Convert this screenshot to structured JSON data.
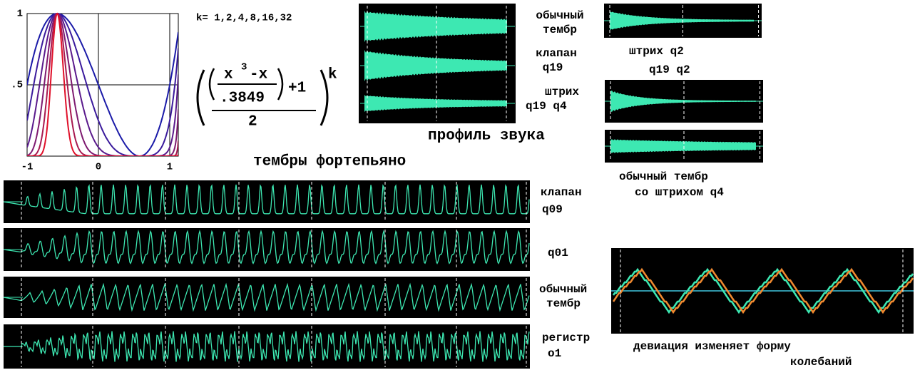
{
  "plot": {
    "xlim": [
      -1,
      1.12
    ],
    "ylim": [
      0,
      1
    ],
    "xticks": [
      -1,
      0,
      1
    ],
    "yticks": [
      {
        "value": 0.5,
        "label": ".5"
      },
      1
    ],
    "k_text": "k= 1,2,4,8,16,32",
    "curves": [
      {
        "k": 1,
        "color": "#1a1aa8"
      },
      {
        "k": 2,
        "color": "#3a1a9c"
      },
      {
        "k": 4,
        "color": "#5a1a8c"
      },
      {
        "k": 8,
        "color": "#7e1a70"
      },
      {
        "k": 16,
        "color": "#a81a50"
      },
      {
        "k": 32,
        "color": "#e0102a"
      }
    ]
  },
  "formula": {
    "numerator": "x",
    "exponent": "3",
    "minus": "-x",
    "divisor": ".3849",
    "plus": "+1",
    "denominator": "2",
    "power": "k"
  },
  "labels": {
    "normal_timbre": [
      "обычный",
      "тембр"
    ],
    "valve_q19": [
      "клапан",
      "q19"
    ],
    "stroke_q19_q4": [
      "штрих",
      "q19 q4"
    ],
    "sound_profile": "профиль звука",
    "stroke_q2": "штрих q2",
    "q19_q2": "q19 q2",
    "normal_with_stroke": [
      "обычный тембр",
      "со штрихом q4"
    ],
    "piano_timbres": "тембры фортепьяно",
    "valve_q09": [
      "клапан",
      "q09"
    ],
    "q01": "q01",
    "normal_timbre_2": [
      "обычный",
      "тембр"
    ],
    "register_o1": [
      "регистр",
      "o1"
    ],
    "deviation": [
      "девиация изменяет форму",
      "колебаний"
    ]
  }
}
